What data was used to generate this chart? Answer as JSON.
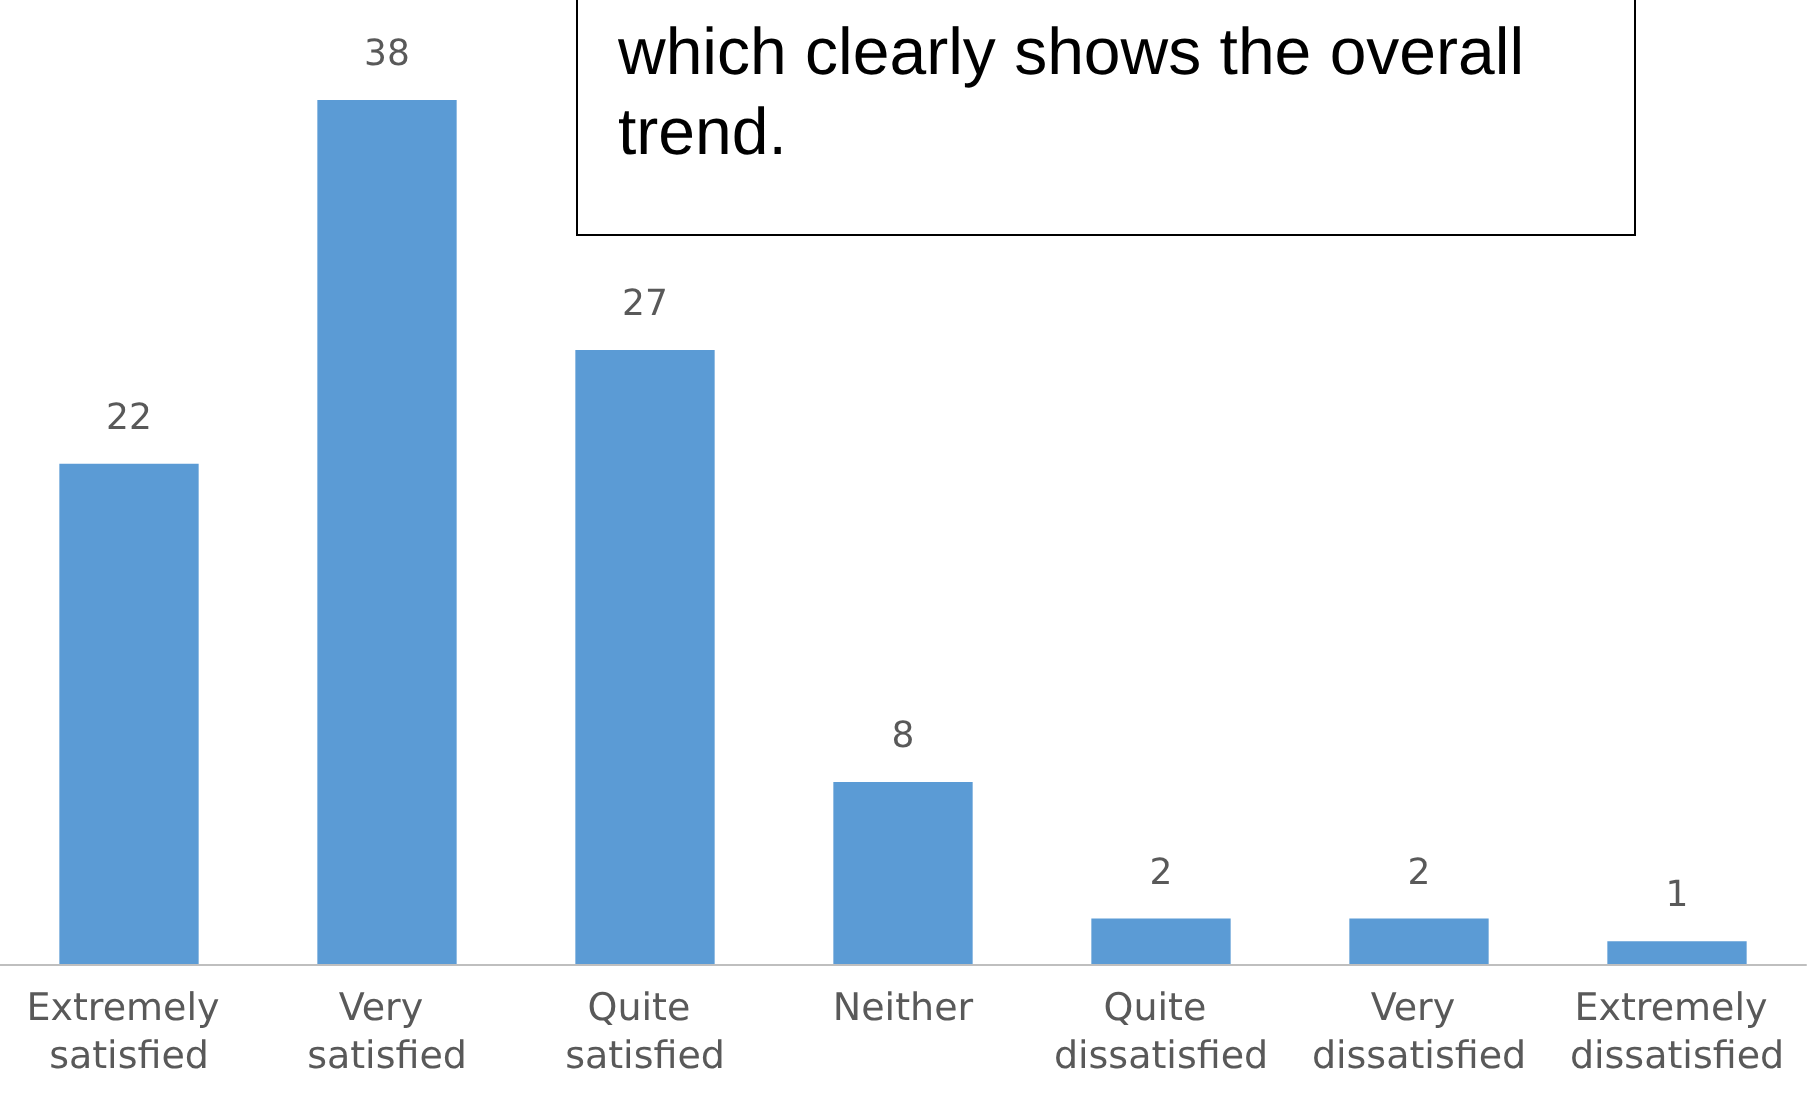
{
  "chart_data": {
    "type": "bar",
    "categories": [
      "Extremely satisfied",
      "Very satisfied",
      "Quite satisfied",
      "Neither",
      "Quite dissatisfied",
      "Very dissatisfied",
      "Extremely dissatisfied"
    ],
    "values": [
      22,
      38,
      27,
      8,
      2,
      2,
      1
    ],
    "color": "#5b9bd5",
    "data_labels": true,
    "annotations": [
      "which clearly shows the overall trend."
    ]
  }
}
